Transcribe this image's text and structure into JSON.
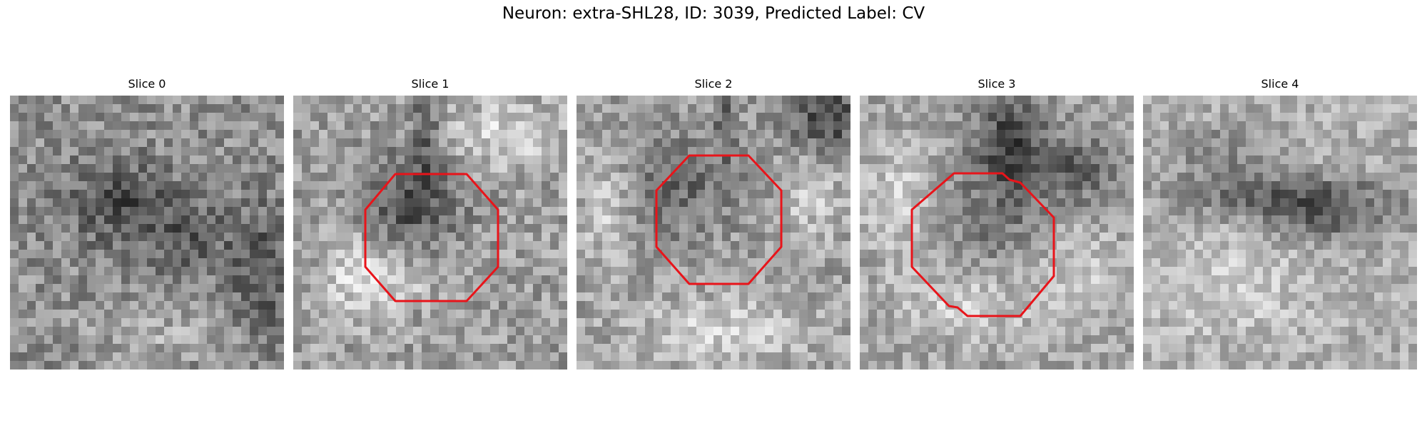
{
  "figure": {
    "title": "Neuron: extra-SHL28, ID: 3039, Predicted Label: CV"
  },
  "panels": [
    {
      "title": "Slice 0",
      "contour": false
    },
    {
      "title": "Slice 1",
      "contour": true
    },
    {
      "title": "Slice 2",
      "contour": true
    },
    {
      "title": "Slice 3",
      "contour": true
    },
    {
      "title": "Slice 4",
      "contour": false
    }
  ],
  "colors": {
    "contour": "#e8141a",
    "background": "#ffffff"
  }
}
